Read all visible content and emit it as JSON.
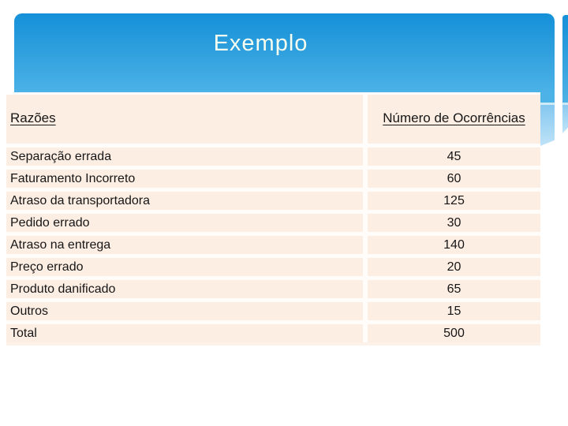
{
  "slide_title": "Exemplo",
  "table": {
    "header": {
      "reason": "Razões",
      "count": "Número de Ocorrências"
    },
    "rows": [
      {
        "reason": "Separação errada",
        "count": "45"
      },
      {
        "reason": "Faturamento Incorreto",
        "count": "60"
      },
      {
        "reason": "Atraso da transportadora",
        "count": "125"
      },
      {
        "reason": "Pedido errado",
        "count": "30"
      },
      {
        "reason": "Atraso na entrega",
        "count": "140"
      },
      {
        "reason": "Preço errado",
        "count": "20"
      },
      {
        "reason": "Produto danificado",
        "count": "65"
      },
      {
        "reason": "Outros",
        "count": "15"
      },
      {
        "reason": "Total",
        "count": "500"
      }
    ]
  },
  "colors": {
    "banner_gradient_top": "#1590d8",
    "banner_gradient_bottom": "#4cb2e7",
    "table_background": "#fdeee4",
    "separator": "#fffcfa",
    "title_text": "#f7fcf0",
    "body_text": "#161616",
    "fold_highlight": "#cdeafa",
    "fold_light_blue": "#bfe3f8"
  },
  "chart_data": {
    "type": "table",
    "title": "Exemplo",
    "columns": [
      "Razões",
      "Número de Ocorrências"
    ],
    "categories": [
      "Separação errada",
      "Faturamento Incorreto",
      "Atraso da transportadora",
      "Pedido errado",
      "Atraso na entrega",
      "Preço errado",
      "Produto danificado",
      "Outros"
    ],
    "values": [
      45,
      60,
      125,
      30,
      140,
      20,
      65,
      15
    ],
    "total_label": "Total",
    "total": 500
  }
}
